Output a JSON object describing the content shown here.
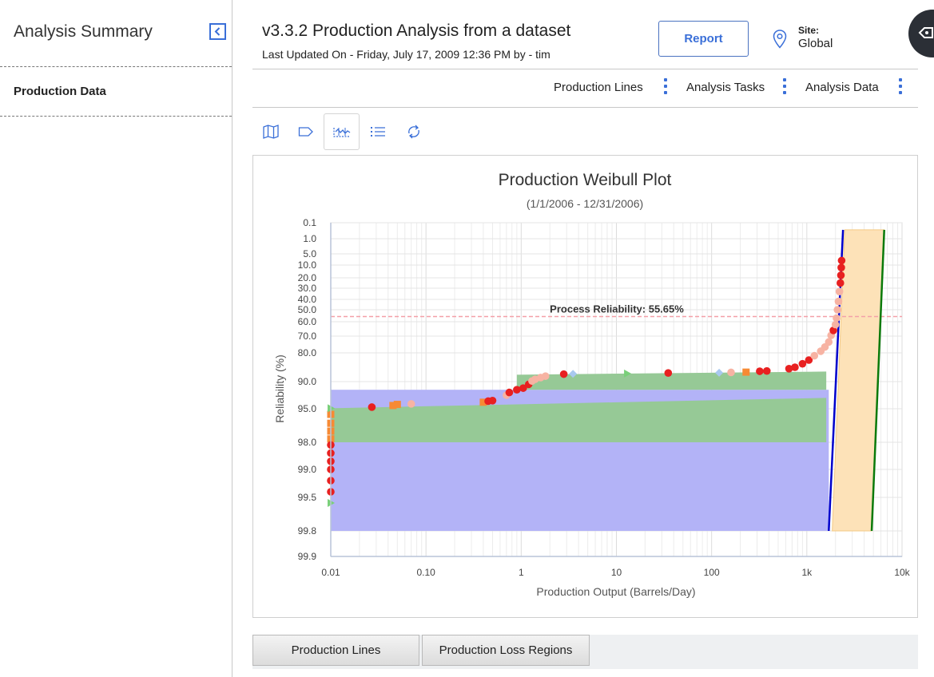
{
  "sidebar": {
    "title": "Analysis Summary",
    "collapse_icon": "chevron-left-icon",
    "items": [
      {
        "label": "Production Data"
      }
    ]
  },
  "header": {
    "title": "v3.3.2 Production Analysis from a dataset",
    "subtitle": "Last Updated On - Friday, July 17, 2009 12:36 PM by - tim",
    "report_label": "Report",
    "site_label": "Site:",
    "site_value": "Global",
    "accent": "#3a6fd8"
  },
  "nav": {
    "links": [
      {
        "label": "Production Lines"
      },
      {
        "label": "Analysis Tasks"
      },
      {
        "label": "Analysis Data"
      }
    ]
  },
  "toolbar": {
    "tools": [
      "map-icon",
      "tag-icon",
      "weibull-plot-icon",
      "list-icon",
      "refresh-icon"
    ],
    "active": "weibull-plot-icon"
  },
  "chart_data": {
    "type": "scatter",
    "title": "Production Weibull Plot",
    "subtitle": "(1/1/2006 - 12/31/2006)",
    "xlabel": "Production Output (Barrels/Day)",
    "ylabel": "Reliability (%)",
    "x_scale": "log",
    "y_scale": "weibull",
    "xlim": [
      0.01,
      10000
    ],
    "x_ticks": [
      "0.01",
      "0.10",
      "1",
      "10",
      "100",
      "1k",
      "10k"
    ],
    "x_tick_values": [
      0.01,
      0.1,
      1,
      10,
      100,
      1000,
      10000
    ],
    "y_ticks": [
      "0.1",
      "1.0",
      "5.0",
      "10.0",
      "20.0",
      "30.0",
      "40.0",
      "50.0",
      "60.0",
      "70.0",
      "80.0",
      "90.0",
      "95.0",
      "98.0",
      "99.0",
      "99.5",
      "99.8",
      "99.9"
    ],
    "y_tick_values": [
      0.1,
      1,
      5,
      10,
      20,
      30,
      40,
      50,
      60,
      70,
      80,
      90,
      95,
      98,
      99,
      99.5,
      99.8,
      99.9
    ],
    "grid": true,
    "annotation": "Process Reliability: 55.65%",
    "process_reliability": 55.65,
    "colors": {
      "blue_region": "#b3b3f7",
      "green_region": "#96c996",
      "orange_region": "#fde2b8",
      "blue_line": "#0000cc",
      "green_line": "#0a7a0a",
      "reliability_line": "#f4a0a8",
      "points_red": "#e82020",
      "points_salmon": "#f7b3a3",
      "points_orange": "#f78a34",
      "points_green": "#7ad07a",
      "points_lightblue": "#a9c9f0"
    },
    "regions": [
      {
        "name": "blue",
        "x": [
          0.01,
          1700
        ],
        "y": [
          91.5,
          99.8
        ]
      },
      {
        "name": "green-upper",
        "x": [
          0.9,
          1600
        ],
        "y": [
          86.5,
          91.5
        ]
      },
      {
        "name": "green-lower",
        "x": [
          0.01,
          1600
        ],
        "y": [
          93,
          98
        ]
      },
      {
        "name": "orange",
        "x_from": [
          1850,
          2500
        ],
        "x_to": [
          4800,
          6500
        ],
        "y": [
          0.5,
          99.8
        ]
      }
    ],
    "lines": [
      {
        "name": "blue",
        "points": [
          [
            1700,
            99.8
          ],
          [
            2400,
            0.5
          ]
        ]
      },
      {
        "name": "green",
        "points": [
          [
            4800,
            99.8
          ],
          [
            6500,
            0.5
          ]
        ]
      }
    ],
    "points": [
      {
        "x": 0.01,
        "y": 95.5,
        "c": "points_orange"
      },
      {
        "x": 0.01,
        "y": 96.3,
        "c": "points_orange"
      },
      {
        "x": 0.01,
        "y": 97.0,
        "c": "points_orange"
      },
      {
        "x": 0.01,
        "y": 97.7,
        "c": "points_orange"
      },
      {
        "x": 0.01,
        "y": 98.1,
        "c": "points_red"
      },
      {
        "x": 0.01,
        "y": 98.4,
        "c": "points_red"
      },
      {
        "x": 0.01,
        "y": 98.7,
        "c": "points_red"
      },
      {
        "x": 0.01,
        "y": 99.0,
        "c": "points_red"
      },
      {
        "x": 0.01,
        "y": 99.2,
        "c": "points_red"
      },
      {
        "x": 0.01,
        "y": 99.4,
        "c": "points_red"
      },
      {
        "x": 0.01,
        "y": 99.55,
        "c": "points_green"
      },
      {
        "x": 0.01,
        "y": 94.9,
        "c": "points_green"
      },
      {
        "x": 0.027,
        "y": 94.7,
        "c": "points_red"
      },
      {
        "x": 0.045,
        "y": 94.4,
        "c": "points_orange"
      },
      {
        "x": 0.05,
        "y": 94.2,
        "c": "points_orange"
      },
      {
        "x": 0.07,
        "y": 94.1,
        "c": "points_salmon"
      },
      {
        "x": 0.4,
        "y": 93.8,
        "c": "points_orange"
      },
      {
        "x": 0.45,
        "y": 93.6,
        "c": "points_red"
      },
      {
        "x": 0.5,
        "y": 93.5,
        "c": "points_red"
      },
      {
        "x": 0.7,
        "y": 92.5,
        "c": "points_salmon"
      },
      {
        "x": 0.75,
        "y": 92.0,
        "c": "points_red"
      },
      {
        "x": 0.9,
        "y": 91.5,
        "c": "points_red"
      },
      {
        "x": 1.05,
        "y": 91.2,
        "c": "points_red"
      },
      {
        "x": 1.2,
        "y": 90.5,
        "c": "points_red"
      },
      {
        "x": 1.3,
        "y": 89.8,
        "c": "points_salmon"
      },
      {
        "x": 1.4,
        "y": 89.2,
        "c": "points_salmon"
      },
      {
        "x": 1.6,
        "y": 88.6,
        "c": "points_salmon"
      },
      {
        "x": 1.8,
        "y": 88.1,
        "c": "points_salmon"
      },
      {
        "x": 2.8,
        "y": 87.4,
        "c": "points_red"
      },
      {
        "x": 3.5,
        "y": 87.3,
        "c": "points_lightblue"
      },
      {
        "x": 13,
        "y": 87.2,
        "c": "points_green"
      },
      {
        "x": 35,
        "y": 87.0,
        "c": "points_red"
      },
      {
        "x": 120,
        "y": 86.9,
        "c": "points_lightblue"
      },
      {
        "x": 160,
        "y": 86.8,
        "c": "points_salmon"
      },
      {
        "x": 230,
        "y": 86.7,
        "c": "points_orange"
      },
      {
        "x": 320,
        "y": 86.4,
        "c": "points_red"
      },
      {
        "x": 380,
        "y": 86.3,
        "c": "points_red"
      },
      {
        "x": 650,
        "y": 85.5,
        "c": "points_red"
      },
      {
        "x": 750,
        "y": 85.0,
        "c": "points_red"
      },
      {
        "x": 900,
        "y": 83.8,
        "c": "points_red"
      },
      {
        "x": 1050,
        "y": 82.5,
        "c": "points_red"
      },
      {
        "x": 1200,
        "y": 81.0,
        "c": "points_salmon"
      },
      {
        "x": 1400,
        "y": 79.0,
        "c": "points_salmon"
      },
      {
        "x": 1550,
        "y": 76.5,
        "c": "points_salmon"
      },
      {
        "x": 1700,
        "y": 73.5,
        "c": "points_salmon"
      },
      {
        "x": 1800,
        "y": 69.5,
        "c": "points_salmon"
      },
      {
        "x": 1900,
        "y": 66.0,
        "c": "points_red"
      },
      {
        "x": 2000,
        "y": 62.0,
        "c": "points_salmon"
      },
      {
        "x": 2050,
        "y": 57.0,
        "c": "points_salmon"
      },
      {
        "x": 2100,
        "y": 50.0,
        "c": "points_salmon"
      },
      {
        "x": 2150,
        "y": 42.0,
        "c": "points_salmon"
      },
      {
        "x": 2200,
        "y": 33.0,
        "c": "points_salmon"
      },
      {
        "x": 2250,
        "y": 25.0,
        "c": "points_red"
      },
      {
        "x": 2280,
        "y": 18.0,
        "c": "points_red"
      },
      {
        "x": 2300,
        "y": 12.0,
        "c": "points_red"
      },
      {
        "x": 2320,
        "y": 8.0,
        "c": "points_red"
      }
    ]
  },
  "bottom_tabs": [
    {
      "label": "Production Lines"
    },
    {
      "label": "Production Loss Regions"
    }
  ]
}
